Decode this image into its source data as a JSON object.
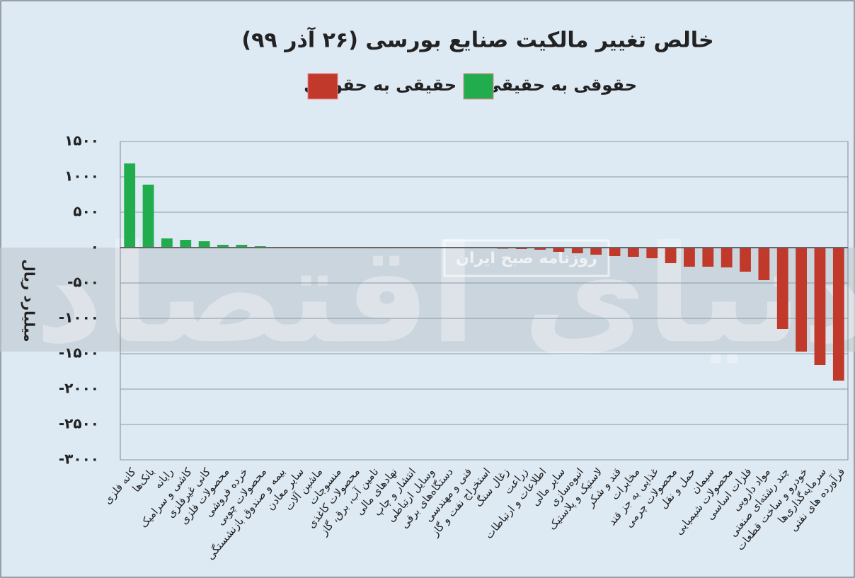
{
  "chart_data": {
    "type": "bar",
    "title": "خالص تغییر مالکیت صنایع بورسی (۲۶ آذر ۹۹)",
    "y_label": "میلیارد ریال",
    "watermark": "دنیای اقتصاد",
    "watermark_sub": "روزنامه صبح ایران",
    "categories": [
      "کانه فلزی",
      "بانک‌ها",
      "رایانه",
      "کاشی و سرامیک",
      "کانی غیرفلزی",
      "محصولات فلزی",
      "خرده فروشی",
      "محصولات چوبی",
      "بیمه و صندوق بازنشستگی",
      "سایر معادن",
      "ماشین آلات",
      "منسوجات",
      "محصولات کاغذی",
      "تامین آب، برق، گاز",
      "نهادهای مالی",
      "انتشار و چاپ",
      "وسایل ارتباطی",
      "دستگاه‌های برقی",
      "فنی و مهندسی",
      "استخراج نفت و گاز",
      "زغال سنگ",
      "زراعت",
      "اطلاعات و ارتباطات",
      "سایر مالی",
      "انبوه‌سازی",
      "لاستیک و پلاستیک",
      "قند و شکر",
      "مخابرات",
      "غذایی به جز قند",
      "محصولات چرمی",
      "حمل و نقل",
      "سیمان",
      "محصولات شیمیایی",
      "فلزات اساسی",
      "مواد دارویی",
      "چند رشته‌ای صنعتی",
      "خودرو و ساخت قطعات",
      "سرمایه‌گذاری‌ها",
      "فرآورده های نفتی"
    ],
    "series": [
      {
        "name": "حقوقی به حقیقی",
        "color": "#21ad4e",
        "values": [
          1190,
          890,
          130,
          110,
          90,
          40,
          40,
          20,
          10,
          5,
          5,
          3,
          2,
          1,
          0,
          null,
          null,
          null,
          null,
          null,
          null,
          null,
          null,
          null,
          null,
          null,
          null,
          null,
          null,
          null,
          null,
          null,
          null,
          null,
          null,
          null,
          null,
          null,
          null
        ]
      },
      {
        "name": "حقیقی به حقوقی",
        "color": "#c0392b",
        "values": [
          null,
          null,
          null,
          null,
          null,
          null,
          null,
          null,
          null,
          null,
          null,
          null,
          null,
          null,
          null,
          -2,
          -3,
          -5,
          -8,
          -10,
          -15,
          -20,
          -30,
          -60,
          -80,
          -100,
          -120,
          -130,
          -150,
          -220,
          -270,
          -270,
          -280,
          -340,
          -460,
          -1150,
          -1470,
          -1660,
          -1880
        ]
      }
    ],
    "ylim": [
      -3000,
      1500
    ],
    "yticks": [
      {
        "value": 1500,
        "label": "۱۵۰۰"
      },
      {
        "value": 1000,
        "label": "۱۰۰۰"
      },
      {
        "value": 500,
        "label": "۵۰۰"
      },
      {
        "value": 0,
        "label": "۰"
      },
      {
        "value": -500,
        "label": "-۵۰۰"
      },
      {
        "value": -1000,
        "label": "-۱۰۰۰"
      },
      {
        "value": -1500,
        "label": "-۱۵۰۰"
      },
      {
        "value": -2000,
        "label": "-۲۰۰۰"
      },
      {
        "value": -2500,
        "label": "-۲۵۰۰"
      },
      {
        "value": -3000,
        "label": "-۳۰۰۰"
      }
    ],
    "grid": true
  }
}
